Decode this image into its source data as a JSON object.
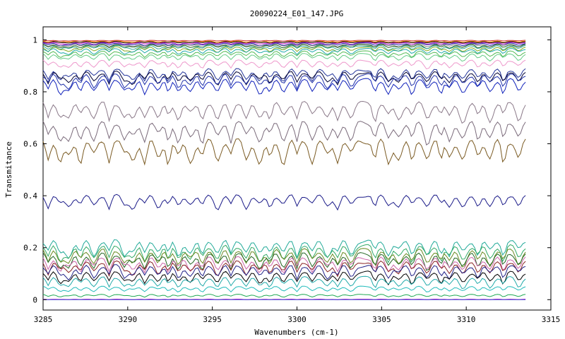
{
  "chart_data": {
    "type": "line",
    "title": "20090224_E01_147.JPG",
    "xlabel": "Wavenumbers (cm-1)",
    "ylabel": "Transmitance",
    "xlim": [
      3285,
      3315
    ],
    "ylim": [
      -0.04,
      1.05
    ],
    "x_ticks": [
      3285,
      3290,
      3295,
      3300,
      3305,
      3310,
      3315
    ],
    "y_ticks": [
      0,
      0.2,
      0.4,
      0.6,
      0.8,
      1
    ],
    "x_tick_labels": [
      "3285",
      "3290",
      "3295",
      "3300",
      "3305",
      "3310",
      "3315"
    ],
    "y_tick_labels": [
      "0",
      "0.2",
      "0.4",
      "0.6",
      "0.8",
      "1"
    ],
    "grid": false,
    "legend": "none",
    "x_range_of_data": [
      3285,
      3313.5
    ],
    "absorption_lines": [
      3285.3,
      3286.0,
      3286.5,
      3287.2,
      3288.0,
      3288.9,
      3289.8,
      3290.3,
      3291.0,
      3291.8,
      3292.4,
      3293.0,
      3293.7,
      3294.4,
      3295.3,
      3296.1,
      3297.0,
      3297.8,
      3298.4,
      3299.2,
      3300.0,
      3300.9,
      3301.8,
      3302.4,
      3303.2,
      3304.6,
      3305.4,
      3306.0,
      3306.8,
      3307.7,
      3308.5,
      3309.0,
      3309.8,
      3310.7,
      3311.4,
      3312.2,
      3313.1
    ],
    "series": [
      {
        "base": 0.998,
        "depth": 0.003,
        "color": "#cc3333"
      },
      {
        "base": 0.995,
        "depth": 0.005,
        "color": "#ff8800"
      },
      {
        "base": 0.993,
        "depth": 0.006,
        "color": "#000000"
      },
      {
        "base": 0.99,
        "depth": 0.008,
        "color": "#cc22cc"
      },
      {
        "base": 0.987,
        "depth": 0.01,
        "color": "#2222aa"
      },
      {
        "base": 0.984,
        "depth": 0.012,
        "color": "#888888"
      },
      {
        "base": 0.981,
        "depth": 0.014,
        "color": "#226622"
      },
      {
        "base": 0.977,
        "depth": 0.016,
        "color": "#33aa99"
      },
      {
        "base": 0.972,
        "depth": 0.019,
        "color": "#88aa22"
      },
      {
        "base": 0.965,
        "depth": 0.02,
        "color": "#22aaaa"
      },
      {
        "base": 0.955,
        "depth": 0.022,
        "color": "#55bb55"
      },
      {
        "base": 0.945,
        "depth": 0.025,
        "color": "#66cc88"
      },
      {
        "base": 0.92,
        "depth": 0.03,
        "color": "#ee99cc"
      },
      {
        "base": 0.885,
        "depth": 0.045,
        "color": "#223399"
      },
      {
        "base": 0.875,
        "depth": 0.045,
        "color": "#000033"
      },
      {
        "base": 0.865,
        "depth": 0.05,
        "color": "#2233aa"
      },
      {
        "base": 0.845,
        "depth": 0.055,
        "color": "#1122bb"
      },
      {
        "base": 0.755,
        "depth": 0.07,
        "color": "#8a7888"
      },
      {
        "base": 0.68,
        "depth": 0.08,
        "color": "#7a6a7a"
      },
      {
        "base": 0.61,
        "depth": 0.09,
        "color": "#7a5a22"
      },
      {
        "base": 0.4,
        "depth": 0.05,
        "color": "#1a1a88"
      },
      {
        "base": 0.225,
        "depth": 0.06,
        "color": "#22aa99"
      },
      {
        "base": 0.205,
        "depth": 0.06,
        "color": "#33aa66"
      },
      {
        "base": 0.19,
        "depth": 0.06,
        "color": "#6a8a22"
      },
      {
        "base": 0.175,
        "depth": 0.06,
        "color": "#226622"
      },
      {
        "base": 0.16,
        "depth": 0.055,
        "color": "#cc66aa"
      },
      {
        "base": 0.145,
        "depth": 0.05,
        "color": "#882222"
      },
      {
        "base": 0.13,
        "depth": 0.05,
        "color": "#222288"
      },
      {
        "base": 0.105,
        "depth": 0.045,
        "color": "#000000"
      },
      {
        "base": 0.085,
        "depth": 0.04,
        "color": "#22aaaa"
      },
      {
        "base": 0.05,
        "depth": 0.02,
        "color": "#22bbbb"
      },
      {
        "base": 0.02,
        "depth": 0.01,
        "color": "#22aa55"
      },
      {
        "base": 0.002,
        "depth": 0.002,
        "color": "#cc33cc"
      },
      {
        "base": 0.0,
        "depth": 0.0,
        "color": "#3333cc"
      }
    ]
  }
}
